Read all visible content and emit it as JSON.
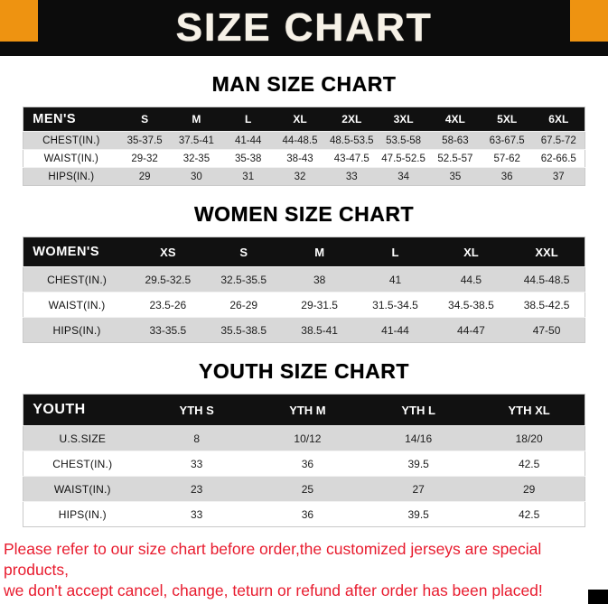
{
  "banner": {
    "title": "SIZE CHART"
  },
  "colors": {
    "banner_bg": "#0c0c0c",
    "corner_accent": "#ee9311",
    "title_color": "#f6f1e7",
    "table_header_bg": "#111111",
    "row_alt_bg": "#d8d8d8",
    "footer_text": "#e81b2e"
  },
  "sections": [
    {
      "name": "men",
      "heading": "MAN SIZE CHART",
      "columns": [
        "MEN'S",
        "S",
        "M",
        "L",
        "XL",
        "2XL",
        "3XL",
        "4XL",
        "5XL",
        "6XL"
      ],
      "rows": [
        [
          "CHEST(IN.)",
          "35-37.5",
          "37.5-41",
          "41-44",
          "44-48.5",
          "48.5-53.5",
          "53.5-58",
          "58-63",
          "63-67.5",
          "67.5-72"
        ],
        [
          "WAIST(IN.)",
          "29-32",
          "32-35",
          "35-38",
          "38-43",
          "43-47.5",
          "47.5-52.5",
          "52.5-57",
          "57-62",
          "62-66.5"
        ],
        [
          "HIPS(IN.)",
          "29",
          "30",
          "31",
          "32",
          "33",
          "34",
          "35",
          "36",
          "37"
        ]
      ]
    },
    {
      "name": "women",
      "heading": "WOMEN SIZE CHART",
      "columns": [
        "WOMEN'S",
        "XS",
        "S",
        "M",
        "L",
        "XL",
        "XXL"
      ],
      "rows": [
        [
          "CHEST(IN.)",
          "29.5-32.5",
          "32.5-35.5",
          "38",
          "41",
          "44.5",
          "44.5-48.5"
        ],
        [
          "WAIST(IN.)",
          "23.5-26",
          "26-29",
          "29-31.5",
          "31.5-34.5",
          "34.5-38.5",
          "38.5-42.5"
        ],
        [
          "HIPS(IN.)",
          "33-35.5",
          "35.5-38.5",
          "38.5-41",
          "41-44",
          "44-47",
          "47-50"
        ]
      ]
    },
    {
      "name": "youth",
      "heading": "YOUTH SIZE CHART",
      "columns": [
        "YOUTH",
        "YTH S",
        "YTH M",
        "YTH L",
        "YTH XL"
      ],
      "rows": [
        [
          "U.S.SIZE",
          "8",
          "10/12",
          "14/16",
          "18/20"
        ],
        [
          "CHEST(IN.)",
          "33",
          "36",
          "39.5",
          "42.5"
        ],
        [
          "WAIST(IN.)",
          "23",
          "25",
          "27",
          "29"
        ],
        [
          "HIPS(IN.)",
          "33",
          "36",
          "39.5",
          "42.5"
        ]
      ]
    }
  ],
  "footer": {
    "lines": [
      "Please refer to our size chart before order,the customized jerseys are special products,",
      "we don't accept cancel, change, teturn or refund after order has been placed!"
    ]
  }
}
